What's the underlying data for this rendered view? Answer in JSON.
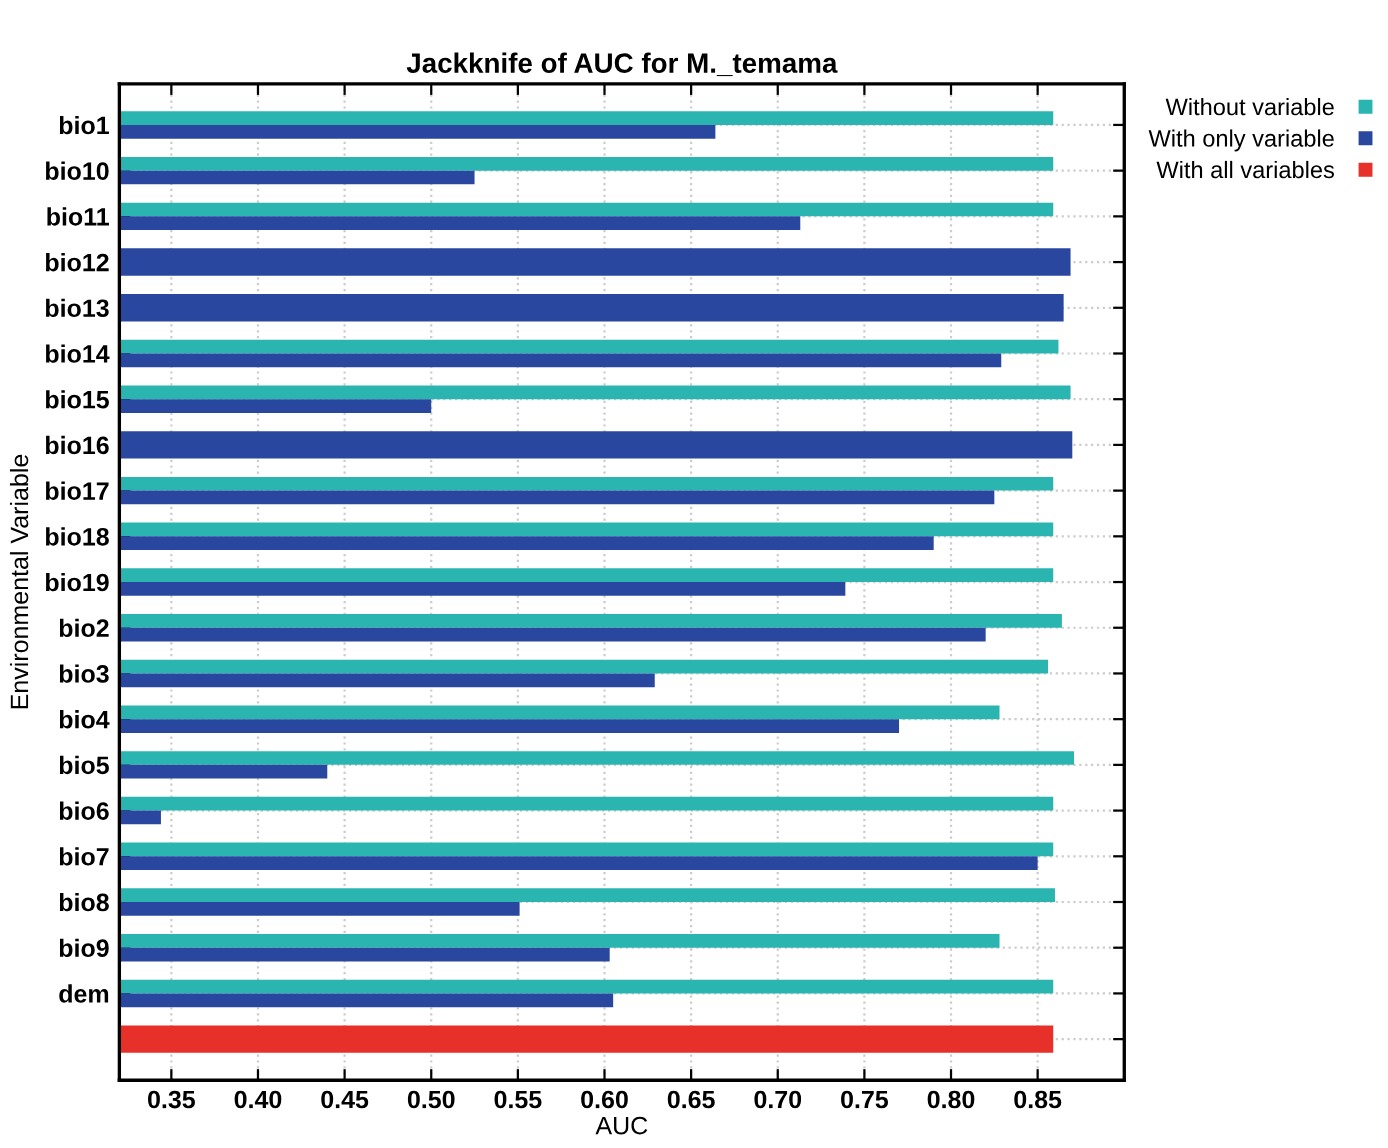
{
  "chart_data": {
    "type": "bar",
    "orientation": "horizontal",
    "title": "Jackknife of AUC for M._temama",
    "xlabel": "AUC",
    "ylabel": "Environmental Variable",
    "categories": [
      "bio1",
      "bio10",
      "bio11",
      "bio12",
      "bio13",
      "bio14",
      "bio15",
      "bio16",
      "bio17",
      "bio18",
      "bio19",
      "bio2",
      "bio3",
      "bio4",
      "bio5",
      "bio6",
      "bio7",
      "bio8",
      "bio9",
      "dem",
      null
    ],
    "series": [
      {
        "name": "Without variable",
        "color": "#2bb5b0",
        "values": [
          0.859,
          0.859,
          0.859,
          null,
          null,
          0.862,
          0.869,
          null,
          0.859,
          0.859,
          0.859,
          0.864,
          0.856,
          0.828,
          0.871,
          0.859,
          0.859,
          0.86,
          0.828,
          0.859,
          null
        ]
      },
      {
        "name": "With only variable",
        "color": "#2a47a0",
        "values": [
          0.664,
          0.525,
          0.713,
          0.869,
          0.865,
          0.829,
          0.5,
          0.87,
          0.825,
          0.79,
          0.739,
          0.82,
          0.629,
          0.77,
          0.44,
          0.344,
          0.85,
          0.551,
          0.603,
          0.605,
          null
        ]
      },
      {
        "name": "With all variables",
        "color": "#e8302a",
        "values": [
          null,
          null,
          null,
          null,
          null,
          null,
          null,
          null,
          null,
          null,
          null,
          null,
          null,
          null,
          null,
          null,
          null,
          null,
          null,
          null,
          0.859
        ]
      }
    ],
    "xlim": [
      0.32,
      0.9
    ],
    "xticks": [
      {
        "value": 0.35,
        "label": "0.35"
      },
      {
        "value": 0.4,
        "label": "0.40"
      },
      {
        "value": 0.45,
        "label": "0.45"
      },
      {
        "value": 0.5,
        "label": "0.50"
      },
      {
        "value": 0.55,
        "label": "0.55"
      },
      {
        "value": 0.6,
        "label": "0.60"
      },
      {
        "value": 0.65,
        "label": "0.65"
      },
      {
        "value": 0.7,
        "label": "0.70"
      },
      {
        "value": 0.75,
        "label": "0.75"
      },
      {
        "value": 0.8,
        "label": "0.80"
      },
      {
        "value": 0.85,
        "label": "0.85"
      }
    ],
    "grid": true,
    "legend": "top right"
  }
}
